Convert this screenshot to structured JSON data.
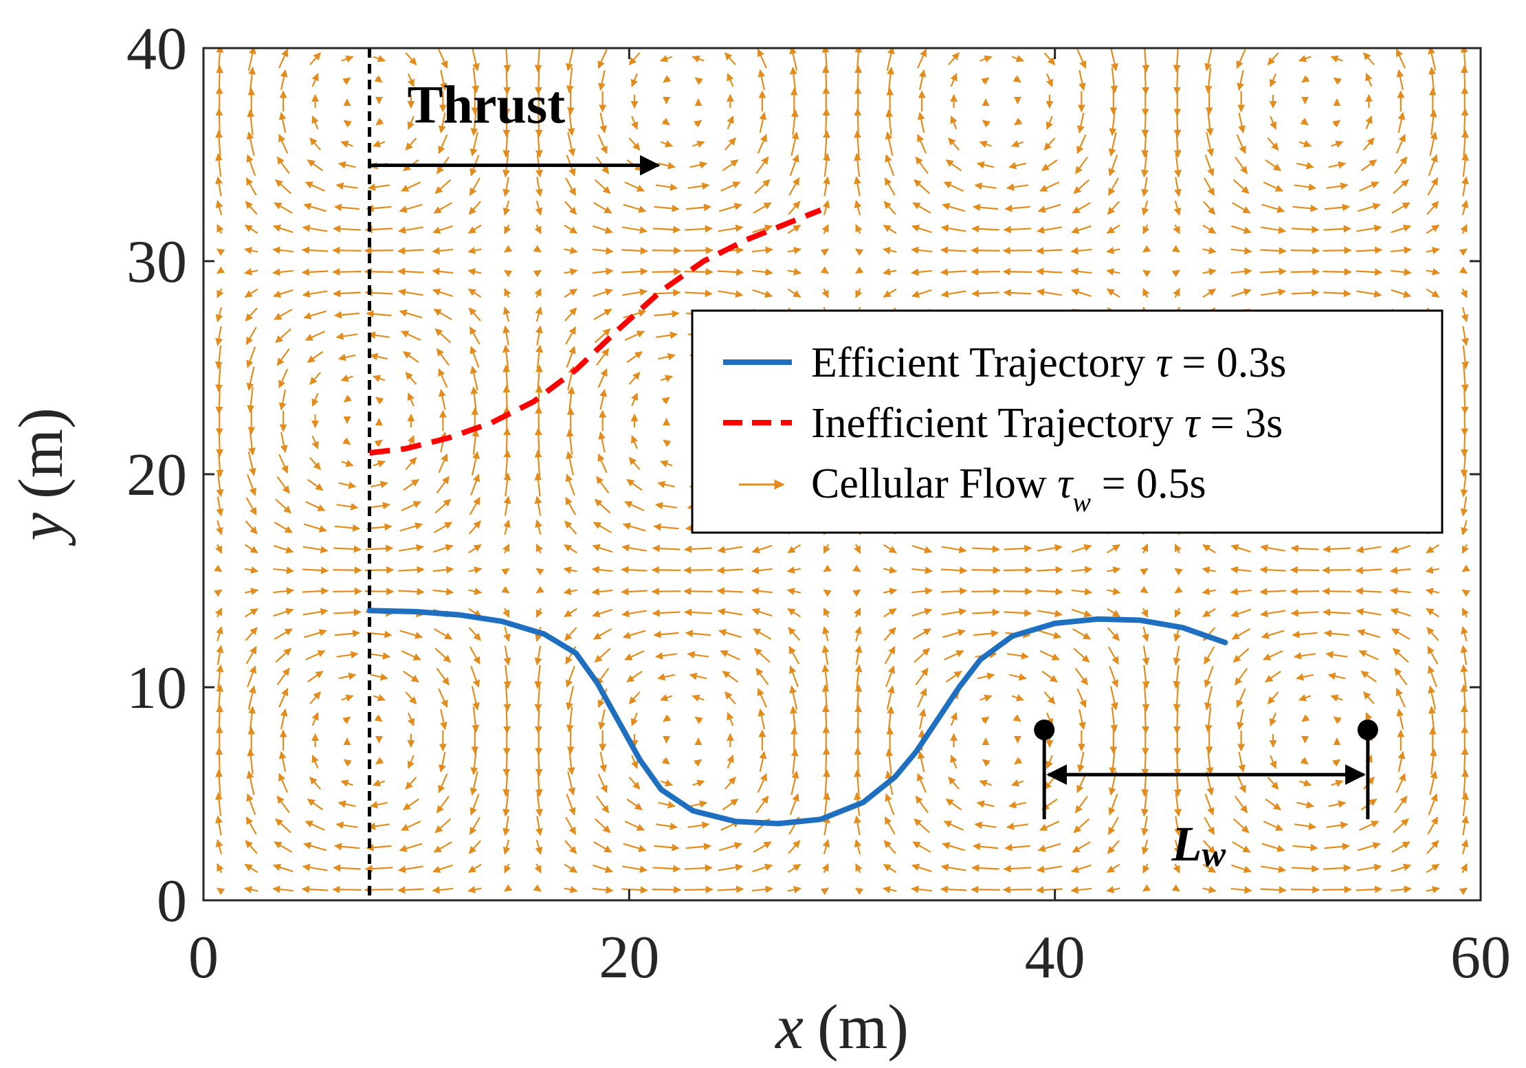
{
  "chart_data": {
    "type": "line",
    "xlabel_var": "x",
    "xlabel_unit": "(m)",
    "ylabel_var": "y",
    "ylabel_unit": "(m)",
    "xlim": [
      0,
      60
    ],
    "ylim": [
      0,
      40
    ],
    "x_ticks": [
      "0",
      "20",
      "40",
      "60"
    ],
    "y_ticks": [
      "0",
      "10",
      "20",
      "30",
      "40"
    ],
    "grid": false,
    "legend_position": "center-right",
    "series": [
      {
        "name": "Efficient Trajectory",
        "legend_prefix": "Efficient Trajectory ",
        "legend_symbol": "τ",
        "legend_suffix": " = 0.3s",
        "style": "solid",
        "color": "#1f6fc0",
        "x": [
          7.8,
          10,
          12,
          14,
          16,
          17.5,
          18.5,
          19.5,
          20.5,
          21.5,
          23,
          25,
          27,
          29,
          31,
          32.5,
          33.5,
          34.5,
          35.5,
          36.5,
          38,
          40,
          42,
          44,
          46,
          48
        ],
        "y": [
          13.6,
          13.55,
          13.4,
          13.1,
          12.5,
          11.6,
          10.2,
          8.4,
          6.6,
          5.2,
          4.2,
          3.7,
          3.6,
          3.8,
          4.6,
          5.8,
          7.0,
          8.5,
          10.0,
          11.3,
          12.4,
          13.0,
          13.2,
          13.15,
          12.8,
          12.1
        ]
      },
      {
        "name": "Inefficient Trajectory",
        "legend_prefix": "Inefficient Trajectory ",
        "legend_symbol": "τ",
        "legend_suffix": " = 3s",
        "style": "dashed",
        "color": "#ff0000",
        "x": [
          7.8,
          9.5,
          11.5,
          13.5,
          15.5,
          17.5,
          19.5,
          21.5,
          23.5,
          25.5,
          27.5,
          29
        ],
        "y": [
          21.0,
          21.2,
          21.7,
          22.4,
          23.4,
          24.9,
          26.8,
          28.6,
          30.0,
          31.0,
          31.8,
          32.4
        ]
      }
    ],
    "vector_field": {
      "name": "Cellular Flow",
      "legend_prefix": "Cellular Flow ",
      "legend_symbol": "τ",
      "legend_subscript": "w",
      "legend_suffix": " = 0.5s",
      "color": "#e38c1c",
      "cell_length_m": 15,
      "x_step_m": 1.5,
      "y_step_m": 1.0
    },
    "annotations": {
      "thrust_label": "Thrust",
      "thrust_line_x": 7.8,
      "thrust_arrow_from": [
        7.8,
        34.5
      ],
      "thrust_arrow_to": [
        21.5,
        34.5
      ],
      "lw_label_main": "L",
      "lw_label_sub": "w",
      "lw_points": [
        [
          39.5,
          8.0
        ],
        [
          54.7,
          8.0
        ]
      ],
      "lw_arrow_y": 5.9
    }
  },
  "colors": {
    "efficient": "#1f6fc0",
    "inefficient": "#ff0000",
    "flow": "#e38c1c",
    "axis": "#262626"
  }
}
